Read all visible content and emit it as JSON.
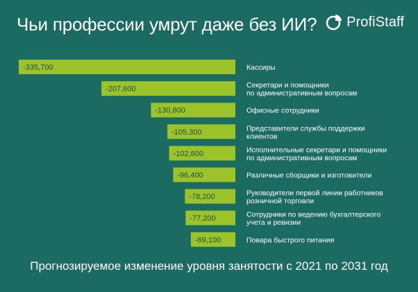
{
  "header": {
    "title": "Чьи профессии умрут даже без ИИ?",
    "brand": "ProfiStaff"
  },
  "colors": {
    "background": "#1c6b63",
    "bar": "#9cc42a",
    "text": "#ffffff",
    "bar_label": "#1f4d45"
  },
  "chart_data": {
    "type": "bar",
    "orientation": "horizontal",
    "title": "Чьи профессии умрут даже без ИИ?",
    "subtitle": "Прогнозируемое изменение уровня занятости  с 2021 по 2031 год",
    "categories": [
      [
        "Кассиры"
      ],
      [
        "Секретари и помощники",
        "по административным вопросам"
      ],
      [
        "Офисные сотрудники"
      ],
      [
        "Представители службы поддержки",
        "клиентов"
      ],
      [
        "Исполнительные секретари и помощники",
        "по административным вопросам"
      ],
      [
        "Различные сборщики и изготовители"
      ],
      [
        "Руководители первой линии работников",
        "розничной торговли"
      ],
      [
        "Сотрудники по ведению бухгалтерского",
        "учета и ревизии"
      ],
      [
        "Повара быстрого питания"
      ]
    ],
    "values": [
      -335700,
      -207600,
      -130800,
      -105300,
      -102600,
      -96400,
      -78200,
      -77200,
      -69100
    ],
    "value_labels": [
      "-335,700",
      "-207,600",
      "-130,800",
      "-105,300",
      "-102,600",
      "-96,400",
      "-78,200",
      "-77,200",
      "-69,100"
    ]
  },
  "footer": {
    "caption": "Прогнозируемое изменение уровня занятости  с 2021 по 2031 год"
  }
}
